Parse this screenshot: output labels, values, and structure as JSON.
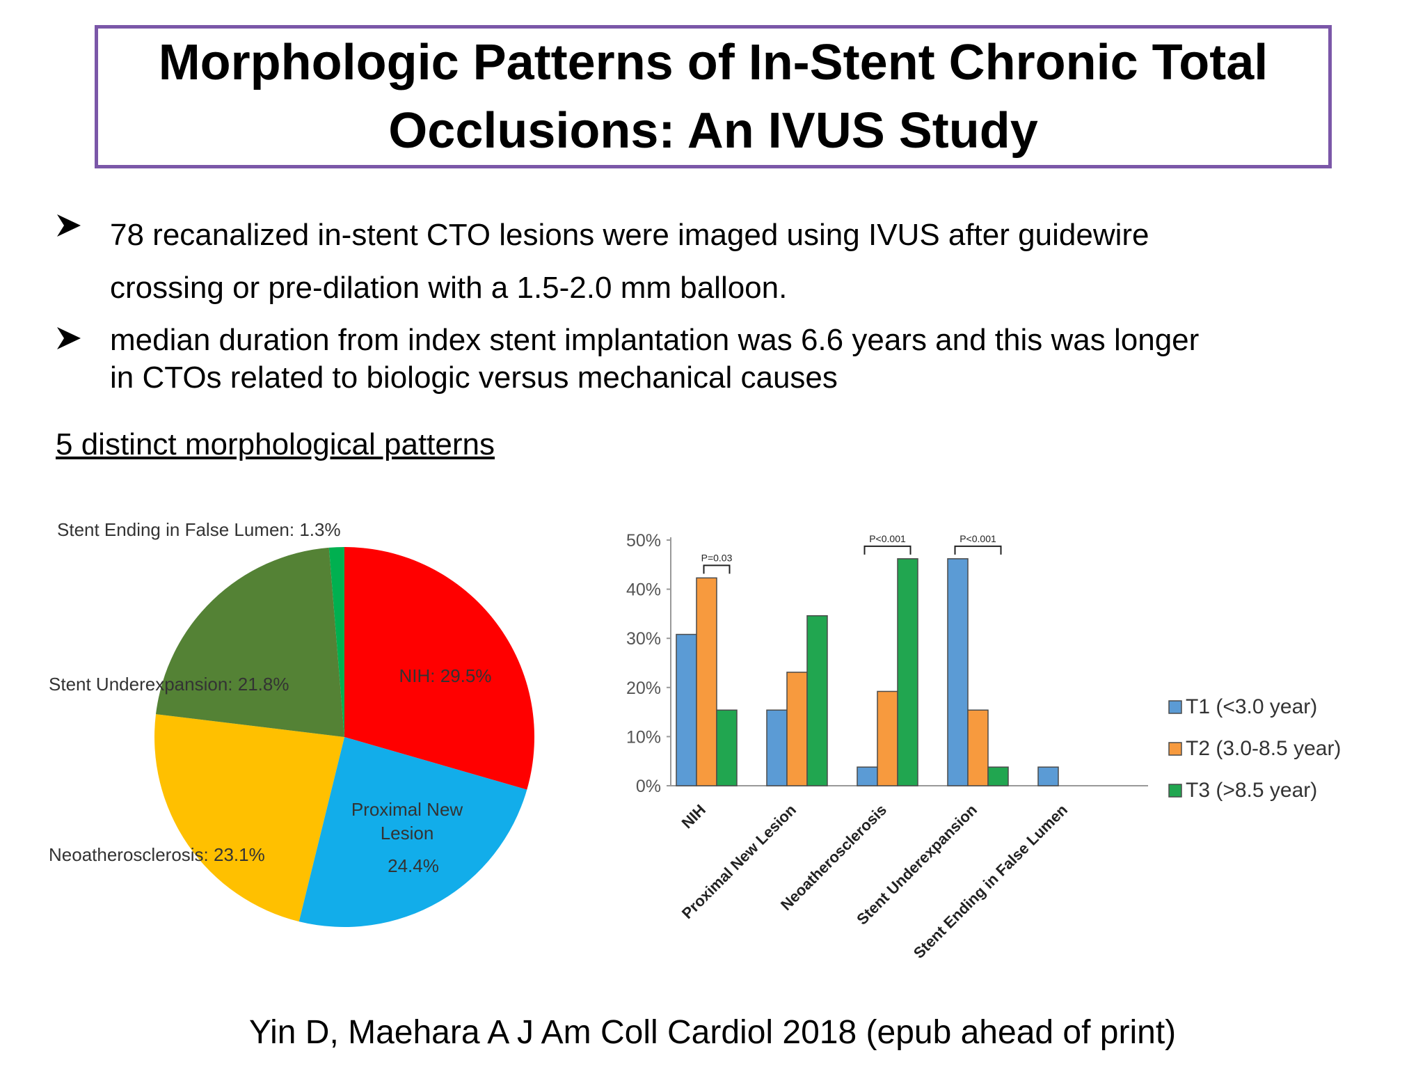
{
  "slide": {
    "title_line1": "Morphologic Patterns of In-Stent Chronic Total",
    "title_line2": "Occlusions:  An IVUS  Study",
    "bullets": [
      {
        "line1": "78 recanalized in-stent CTO lesions were imaged using IVUS after guidewire",
        "line2": "crossing or pre-dilation with a 1.5-2.0 mm balloon."
      },
      {
        "line1": "median duration from  index stent implantation was 6.6 years and this was longer",
        "line2": "in CTOs related to biologic versus mechanical causes"
      }
    ],
    "section_heading": "5 distinct morphological  patterns",
    "citation": "Yin D, Maehara A J Am Coll Cardiol 2018 (epub ahead of print)",
    "bullet_icon": "arrowhead-bullet-icon",
    "border_color": "#7b57a8"
  },
  "chart_data": [
    {
      "type": "pie",
      "slices": [
        {
          "label": "NIH: 29.5%",
          "value": 29.5,
          "color": "#ff0000"
        },
        {
          "label_lines": [
            "Proximal New",
            "Lesion"
          ],
          "value_label": "24.4%",
          "value": 24.4,
          "color": "#12adea"
        },
        {
          "label": "Neoatherosclerosis: 23.1%",
          "value": 23.1,
          "color": "#ffc000"
        },
        {
          "label": "Stent Underexpansion: 21.8%",
          "value": 21.8,
          "color": "#548235"
        },
        {
          "label": "Stent Ending in False Lumen: 1.3%",
          "value": 1.3,
          "color": "#00b050"
        }
      ]
    },
    {
      "type": "bar",
      "categories": [
        "NIH",
        "Proximal New Lesion",
        "Neoatherosclerosis",
        "Stent Underexpansion",
        "Stent Ending in False Lumen"
      ],
      "series": [
        {
          "name": "T1 (<3.0 year)",
          "values": [
            30.8,
            15.4,
            3.8,
            46.2,
            3.8
          ],
          "color": "#5b9bd5"
        },
        {
          "name": "T2 (3.0-8.5 year)",
          "values": [
            42.3,
            23.1,
            19.2,
            15.4,
            0
          ],
          "color": "#f79a3e"
        },
        {
          "name": "T3 (>8.5 year)",
          "values": [
            15.4,
            34.6,
            46.2,
            3.8,
            0
          ],
          "color": "#21a650"
        }
      ],
      "yticks": [
        "50%",
        "40%",
        "30%",
        "20%",
        "10%",
        "0%"
      ],
      "ylim": [
        0,
        50
      ],
      "annotations": [
        {
          "text": "P=0.03",
          "category": 0,
          "from_series": 1,
          "to_series": 2
        },
        {
          "text": "P<0.001",
          "category": 2,
          "from_series": 0,
          "to_series": 2
        },
        {
          "text": "P<0.001",
          "category": 3,
          "from_series": 0,
          "to_series": 2
        }
      ],
      "legend_position": "right"
    }
  ]
}
